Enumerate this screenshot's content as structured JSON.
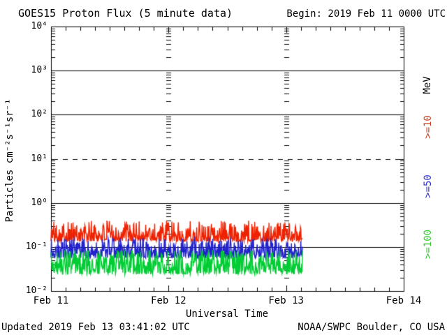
{
  "header": {
    "title": "GOES15 Proton Flux (5 minute data)",
    "begin": "Begin: 2019 Feb 11 0000 UTC"
  },
  "footer": {
    "updated": "Updated 2019 Feb 13 03:41:02 UTC",
    "source": "NOAA/SWPC Boulder, CO USA"
  },
  "chart_data": {
    "type": "line",
    "title": "GOES15 Proton Flux (5 minute data)",
    "xlabel": "Universal Time",
    "ylabel": "Particles cm⁻²s⁻¹sr⁻¹",
    "unit_label": "MeV",
    "y_scale": "log10",
    "y_range_exponents": [
      -2,
      4
    ],
    "y_ticks": [
      {
        "label": "10⁴",
        "exp": 4
      },
      {
        "label": "10³",
        "exp": 3
      },
      {
        "label": "10²",
        "exp": 2
      },
      {
        "label": "10¹",
        "exp": 1
      },
      {
        "label": "10⁰",
        "exp": 0
      },
      {
        "label": "10⁻¹",
        "exp": -1
      },
      {
        "label": "10⁻²",
        "exp": -2
      }
    ],
    "x_ticks": [
      {
        "label": "Feb 11",
        "day": 0
      },
      {
        "label": "Feb 12",
        "day": 1
      },
      {
        "label": "Feb 13",
        "day": 2
      },
      {
        "label": "Feb 14",
        "day": 3
      }
    ],
    "x_span_days": 3,
    "minor_tick_hours": 3,
    "grid": {
      "hline_solid_exponents": [
        3,
        2,
        0,
        -1
      ],
      "hline_dashed_exponents": [
        1
      ],
      "vline_dotted_days": [
        1,
        2
      ]
    },
    "sample_minutes": 5,
    "data_end_days": 2.14,
    "series": [
      {
        "name": ">=10",
        "unit": "MeV",
        "color": "#ee2200",
        "label_color": "#cc4422",
        "typical_flux": 0.17,
        "min_flux": 0.13,
        "max_flux": 0.42,
        "floor_log": -0.87,
        "range_log": 0.47,
        "skew": 2.0,
        "seed": 101
      },
      {
        "name": ">=50",
        "unit": "MeV",
        "color": "#2222cc",
        "label_color": "#3333cc",
        "typical_flux": 0.085,
        "min_flux": 0.055,
        "max_flux": 0.15,
        "floor_log": -1.25,
        "range_log": 0.45,
        "skew": 1.8,
        "seed": 202
      },
      {
        "name": ">=100",
        "unit": "MeV",
        "color": "#00cc33",
        "label_color": "#33cc33",
        "typical_flux": 0.045,
        "min_flux": 0.022,
        "max_flux": 0.088,
        "floor_log": -1.62,
        "range_log": 0.55,
        "skew": 1.6,
        "seed": 303
      }
    ]
  }
}
